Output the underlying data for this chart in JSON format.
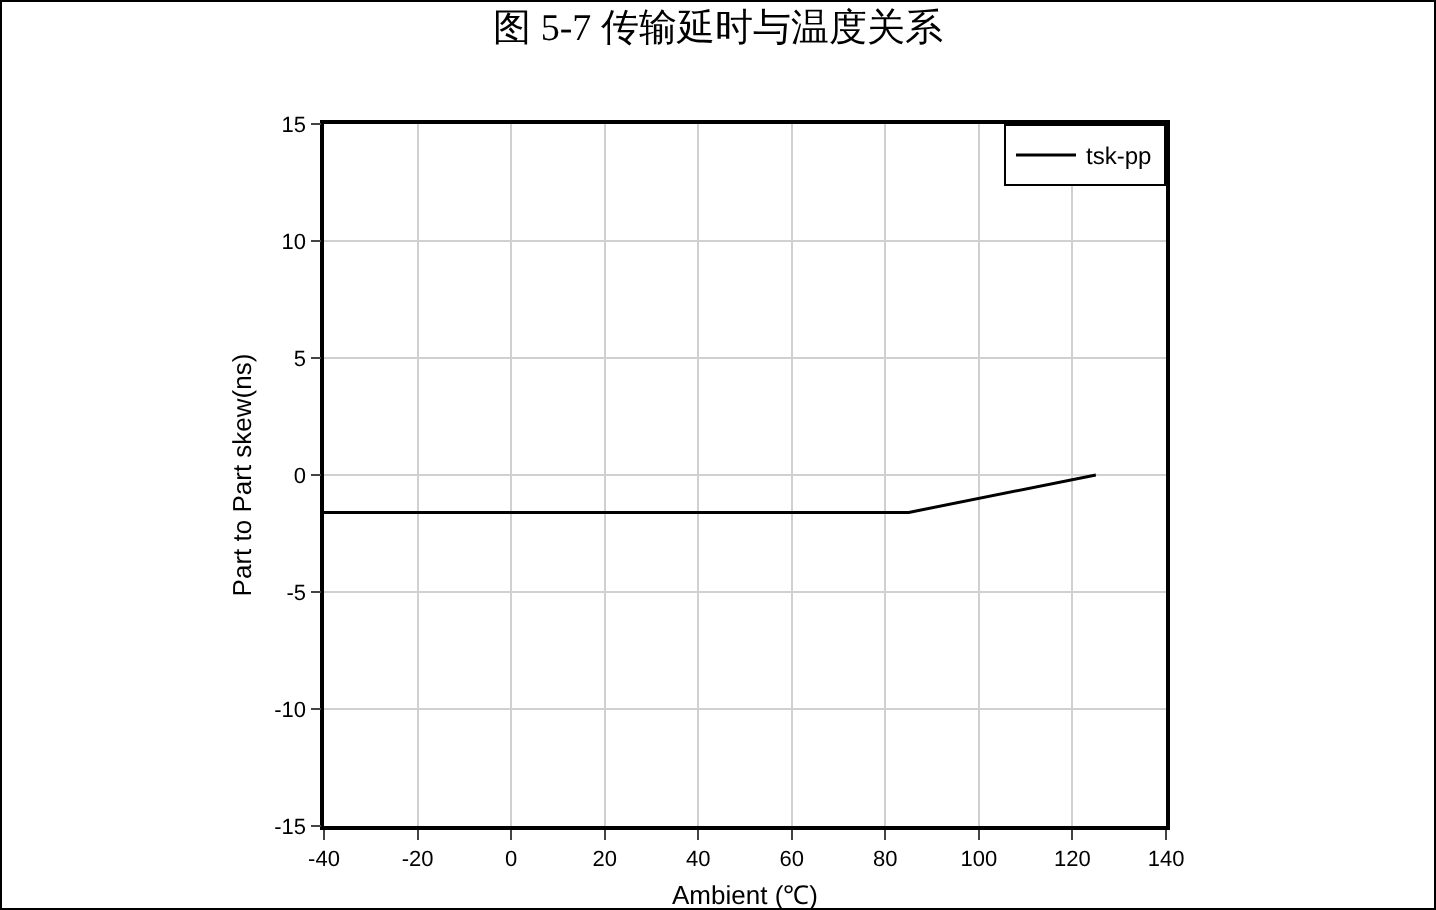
{
  "chart_data": {
    "type": "line",
    "title": "图 5-7 传输延时与温度关系",
    "xlabel": "Ambient (℃)",
    "ylabel": "Part to Part skew(ns)",
    "x": [
      -40,
      85,
      125
    ],
    "series": [
      {
        "name": "tsk-pp",
        "color": "#000000",
        "values": [
          -1.6,
          -1.6,
          0
        ]
      }
    ],
    "xlim": [
      -40,
      140
    ],
    "xticks": [
      -40,
      -20,
      0,
      20,
      40,
      60,
      80,
      100,
      120,
      140
    ],
    "ylim": [
      -15,
      15
    ],
    "yticks": [
      -15,
      -10,
      -5,
      0,
      5,
      10,
      15
    ],
    "grid": true,
    "legend": "top right",
    "line_style": "solid",
    "marker": "none"
  }
}
